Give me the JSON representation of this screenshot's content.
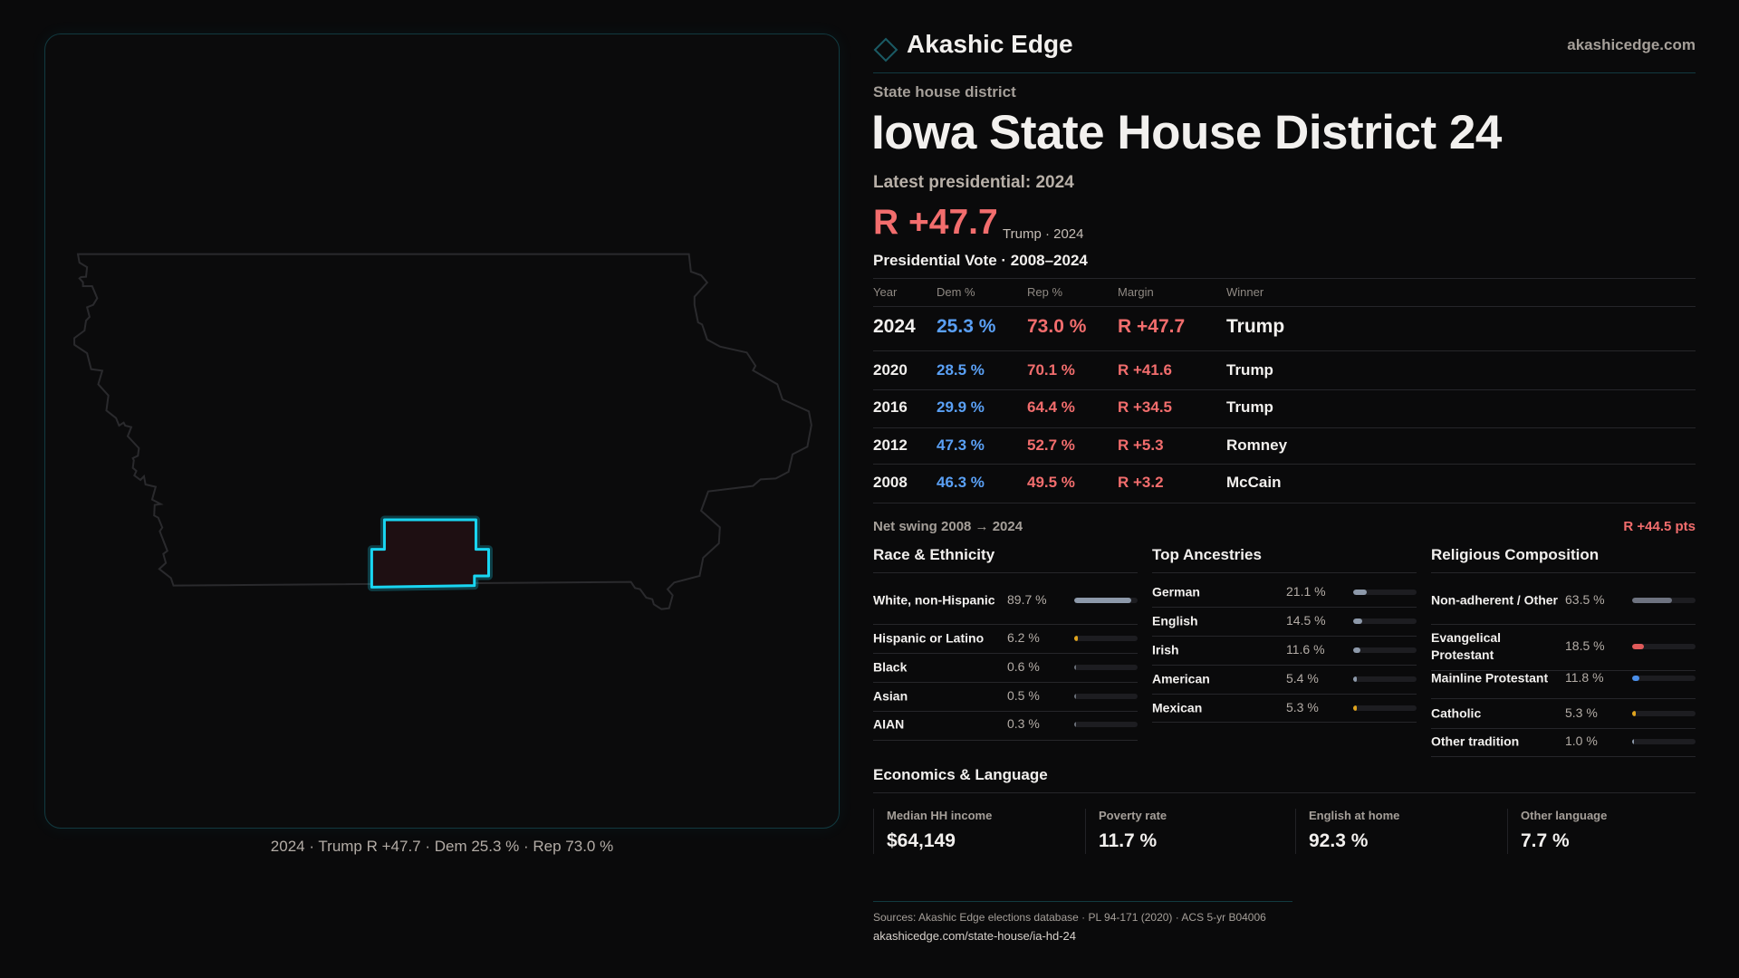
{
  "brand": {
    "name": "Akashic Edge",
    "domain": "akashicedge.com"
  },
  "district": {
    "type": "State house district",
    "title": "Iowa State House District 24",
    "latest_label": "Latest presidential: 2024",
    "margin": "R +47.7",
    "winner_year": "Trump · 2024"
  },
  "map": {
    "caption": "2024 · Trump R +47.7 · Dem 25.3 % · Rep 73.0 %",
    "highlight_color": "#19d6f2"
  },
  "votes": {
    "title": "Presidential Vote · 2008–2024",
    "headers": [
      "Year",
      "Dem %",
      "Rep %",
      "Margin",
      "Winner"
    ],
    "rows": [
      {
        "year": "2024",
        "dem": "25.3 %",
        "rep": "73.0 %",
        "margin": "R +47.7",
        "winner": "Trump"
      },
      {
        "year": "2020",
        "dem": "28.5 %",
        "rep": "70.1 %",
        "margin": "R +41.6",
        "winner": "Trump"
      },
      {
        "year": "2016",
        "dem": "29.9 %",
        "rep": "64.4 %",
        "margin": "R +34.5",
        "winner": "Trump"
      },
      {
        "year": "2012",
        "dem": "47.3 %",
        "rep": "52.7 %",
        "margin": "R +5.3",
        "winner": "Romney"
      },
      {
        "year": "2008",
        "dem": "46.3 %",
        "rep": "49.5 %",
        "margin": "R +3.2",
        "winner": "McCain"
      }
    ],
    "swing_label": "Net swing 2008 → 2024",
    "swing_value": "R +44.5 pts"
  },
  "race": {
    "title": "Race & Ethnicity",
    "items": [
      {
        "label": "White, non-Hispanic",
        "value": "89.7 %",
        "pct": 89.7,
        "color": "#8d99aa"
      },
      {
        "label": "Hispanic or Latino",
        "value": "6.2 %",
        "pct": 6.2,
        "color": "#e0a41e"
      },
      {
        "label": "Black",
        "value": "0.6 %",
        "pct": 0.6,
        "color": "#6a6f78"
      },
      {
        "label": "Asian",
        "value": "0.5 %",
        "pct": 0.5,
        "color": "#6a6f78"
      },
      {
        "label": "AIAN",
        "value": "0.3 %",
        "pct": 0.3,
        "color": "#6a6f78"
      }
    ]
  },
  "ancestry": {
    "title": "Top Ancestries",
    "items": [
      {
        "label": "German",
        "value": "21.1 %",
        "pct": 21.1,
        "color": "#8d99aa"
      },
      {
        "label": "English",
        "value": "14.5 %",
        "pct": 14.5,
        "color": "#8d99aa"
      },
      {
        "label": "Irish",
        "value": "11.6 %",
        "pct": 11.6,
        "color": "#8d99aa"
      },
      {
        "label": "American",
        "value": "5.4 %",
        "pct": 5.4,
        "color": "#8d99aa"
      },
      {
        "label": "Mexican",
        "value": "5.3 %",
        "pct": 5.3,
        "color": "#e0a41e"
      }
    ]
  },
  "religion": {
    "title": "Religious Composition",
    "items": [
      {
        "label": "Non-adherent / Other",
        "value": "63.5 %",
        "pct": 63.5,
        "color": "#6e7380"
      },
      {
        "label": "Evangelical Protestant",
        "value": "18.5 %",
        "pct": 18.5,
        "color": "#e05a5a"
      },
      {
        "label": "Mainline Protestant",
        "value": "11.8 %",
        "pct": 11.8,
        "color": "#4a8ee8"
      },
      {
        "label": "Catholic",
        "value": "5.3 %",
        "pct": 5.3,
        "color": "#e0a41e"
      },
      {
        "label": "Other tradition",
        "value": "1.0 %",
        "pct": 1.0,
        "color": "#8d99aa"
      }
    ]
  },
  "economics": {
    "title": "Economics & Language",
    "items": [
      {
        "label": "Median HH income",
        "value": "$64,149"
      },
      {
        "label": "Poverty rate",
        "value": "11.7 %"
      },
      {
        "label": "English at home",
        "value": "92.3 %"
      },
      {
        "label": "Other language",
        "value": "7.7 %"
      }
    ]
  },
  "footer": {
    "sources": "Sources: Akashic Edge elections database · PL 94-171 (2020) · ACS 5-yr B04006",
    "url": "akashicedge.com/state-house/ia-hd-24"
  }
}
